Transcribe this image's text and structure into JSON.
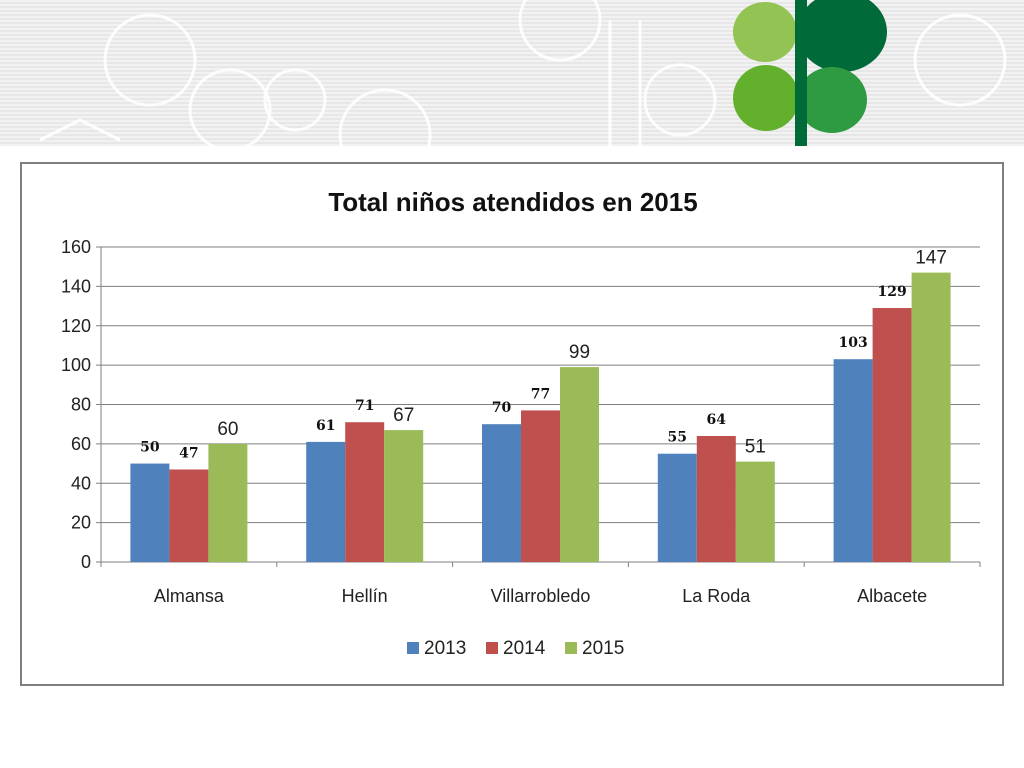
{
  "colors": {
    "series_2013": "#4f81bd",
    "series_2014": "#c0504d",
    "series_2015": "#9bbb59",
    "gridline": "#7f7f7f",
    "logo_light": "#92c353",
    "logo_dark": "#006a38",
    "logo_mid": "#63b02d",
    "logo_green": "#2e9a41"
  },
  "icons": {
    "banner_logo": "clover-logo-icon"
  },
  "chart_data": {
    "type": "bar",
    "title": "Total niños  atendidos en 2015",
    "xlabel": "",
    "ylabel": "",
    "ylim": [
      0,
      160
    ],
    "yticks": [
      "0",
      "20",
      "40",
      "60",
      "80",
      "100",
      "120",
      "140",
      "160"
    ],
    "grid": true,
    "legend_position": "bottom",
    "categories": [
      "Almansa",
      "Hellín",
      "Villarrobledo",
      "La Roda",
      "Albacete"
    ],
    "series": [
      {
        "name": "2013",
        "values": [
          50,
          61,
          70,
          55,
          103
        ],
        "labels": [
          "50",
          "61",
          "70",
          "55",
          "103"
        ]
      },
      {
        "name": "2014",
        "values": [
          47,
          71,
          77,
          64,
          129
        ],
        "labels": [
          "47",
          "71",
          "77",
          "64",
          "129"
        ]
      },
      {
        "name": "2015",
        "values": [
          60,
          67,
          99,
          51,
          147
        ],
        "labels": [
          "60",
          "67",
          "99",
          "51",
          "147"
        ]
      }
    ]
  }
}
